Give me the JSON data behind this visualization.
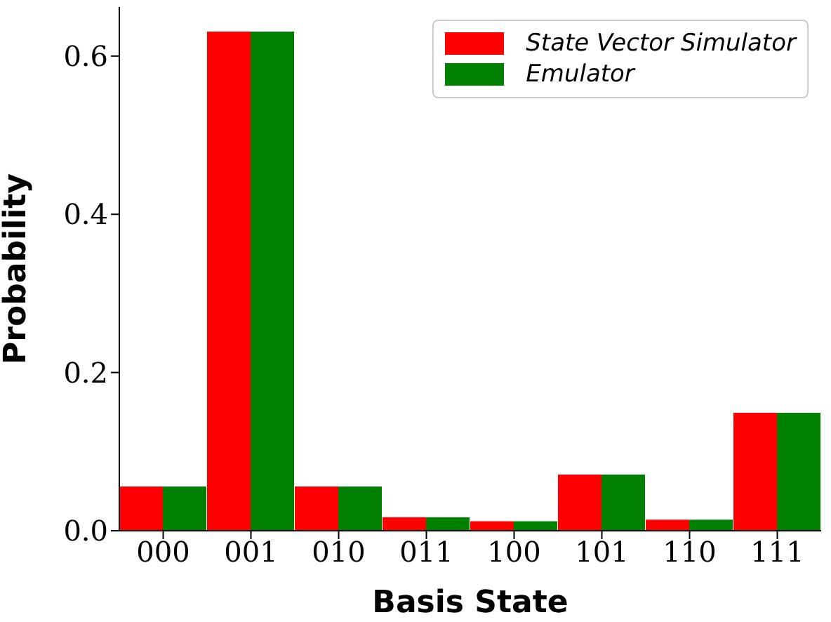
{
  "chart_data": {
    "type": "bar",
    "xlabel": "Basis State",
    "ylabel": "Probability",
    "categories": [
      "000",
      "001",
      "010",
      "011",
      "100",
      "101",
      "110",
      "111"
    ],
    "series": [
      {
        "name": "State Vector Simulator",
        "color": "#ff0000",
        "values": [
          0.056,
          0.631,
          0.056,
          0.017,
          0.012,
          0.071,
          0.014,
          0.149
        ]
      },
      {
        "name": "Emulator",
        "color": "#008000",
        "values": [
          0.056,
          0.631,
          0.056,
          0.017,
          0.012,
          0.071,
          0.014,
          0.149
        ]
      }
    ],
    "ylim": [
      0,
      0.662
    ],
    "yticks": [
      {
        "value": 0,
        "label": "0.0"
      },
      {
        "value": 0.2,
        "label": "0.2"
      },
      {
        "value": 0.4,
        "label": "0.4"
      },
      {
        "value": 0.6,
        "label": "0.6"
      }
    ],
    "grid": false,
    "legend": "top right"
  }
}
